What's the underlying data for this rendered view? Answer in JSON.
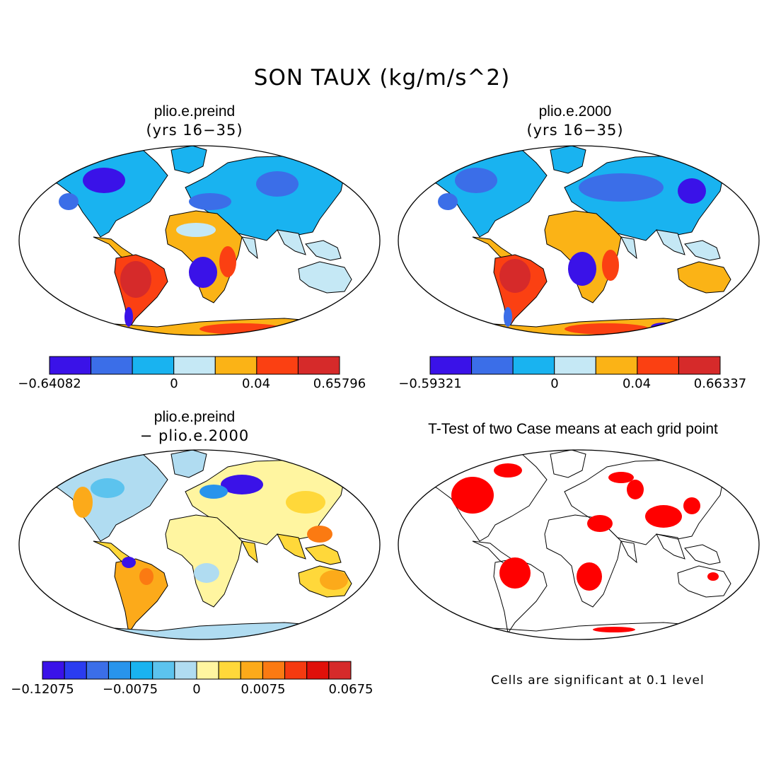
{
  "figure": {
    "title": "SON TAUX (kg/m/s^2)",
    "panels": [
      {
        "id": "p1",
        "title": "plio.e.preind",
        "subtitle": "(yrs 16−35)",
        "colorbar": {
          "colors": [
            "#3a12e8",
            "#3b6ee8",
            "#19b3f0",
            "#c5e8f5",
            "#fbb316",
            "#fb4012",
            "#d62a2a"
          ],
          "labels": [
            "−0.64082",
            "0",
            "0.04",
            "0.65796"
          ]
        }
      },
      {
        "id": "p2",
        "title": "plio.e.2000",
        "subtitle": "(yrs 16−35)",
        "colorbar": {
          "colors": [
            "#3a12e8",
            "#3b6ee8",
            "#19b3f0",
            "#c5e8f5",
            "#fbb316",
            "#fb4012",
            "#d62a2a"
          ],
          "labels": [
            "−0.59321",
            "0",
            "0.04",
            "0.66337"
          ]
        }
      },
      {
        "id": "p3",
        "title": "plio.e.preind",
        "subtitle": "− plio.e.2000",
        "colorbar": {
          "colors": [
            "#3a12e8",
            "#2a3cf0",
            "#3b6ee8",
            "#2894ec",
            "#19b3f0",
            "#5cc3ee",
            "#b0dcf1",
            "#fff5a0",
            "#ffd83a",
            "#fcaa1a",
            "#fb7a12",
            "#f53a10",
            "#e0100a",
            "#d62a2a"
          ],
          "labels": [
            "−0.12075",
            "−0.0075",
            "0",
            "0.0075",
            "0.0675"
          ]
        }
      },
      {
        "id": "p4",
        "title": "T-Test of two Case means at each grid point",
        "note": "Cells are significant at 0.1 level"
      }
    ]
  }
}
